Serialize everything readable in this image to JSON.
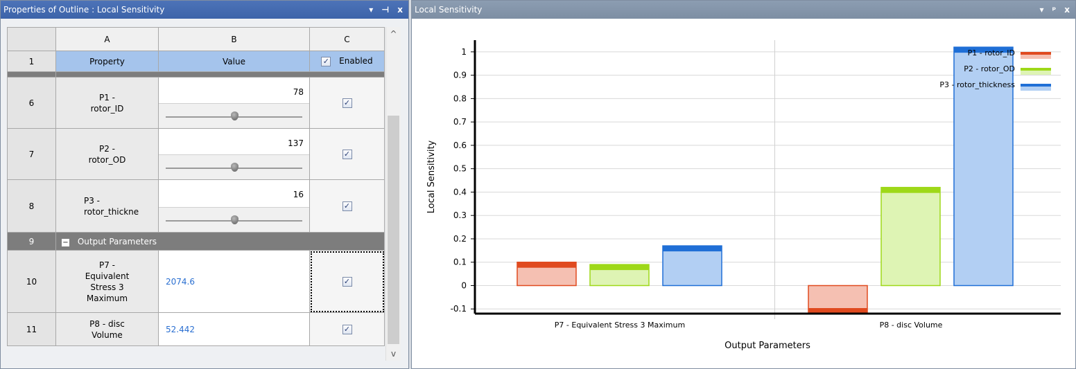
{
  "left_panel": {
    "title": "Properties of Outline : Local Sensitivity",
    "buttons": {
      "dropdown": "▾",
      "pin": "⊣",
      "close": "x"
    },
    "column_letters": [
      "A",
      "B",
      "C"
    ],
    "header_row": {
      "num": "1",
      "property": "Property",
      "value": "Value",
      "enabled": "Enabled"
    },
    "input_rows": [
      {
        "num": "6",
        "property_line1": "P1 -",
        "property_line2": "rotor_ID",
        "value": "78",
        "slider": 0.5,
        "enabled": "✓"
      },
      {
        "num": "7",
        "property_line1": "P2 -",
        "property_line2": "rotor_OD",
        "value": "137",
        "slider": 0.5,
        "enabled": "✓"
      },
      {
        "num": "8",
        "property_line1": "P3 -",
        "property_line2": "rotor_thickne",
        "value": "16",
        "slider": 0.5,
        "enabled": "✓"
      }
    ],
    "group_row": {
      "num": "9",
      "toggle": "−",
      "label": "Output Parameters"
    },
    "output_rows": [
      {
        "num": "10",
        "property_lines": [
          "P7 -",
          "Equivalent",
          "Stress 3",
          "Maximum"
        ],
        "value": "2074.6",
        "enabled": "✓"
      },
      {
        "num": "11",
        "property_lines": [
          "P8 - disc",
          "Volume"
        ],
        "value": "52.442",
        "enabled": "✓"
      }
    ],
    "scroll": {
      "up": "^",
      "down": "v"
    }
  },
  "right_panel": {
    "title": "Local Sensitivity",
    "buttons": {
      "dropdown": "▾",
      "pin": "ᵖ",
      "close": "x"
    }
  },
  "chart_data": {
    "type": "bar",
    "title": "",
    "xlabel": "Output Parameters",
    "ylabel": "Local Sensitivity",
    "ylim": [
      -0.12,
      1.05
    ],
    "yticks": [
      "1",
      "0.9",
      "0.8",
      "0.7",
      "0.6",
      "0.5",
      "0.4",
      "0.3",
      "0.2",
      "0.1",
      "0",
      "-0.1"
    ],
    "ytick_values": [
      1,
      0.9,
      0.8,
      0.7,
      0.6,
      0.5,
      0.4,
      0.3,
      0.2,
      0.1,
      0,
      -0.1
    ],
    "categories": [
      "P7 - Equivalent Stress 3 Maximum",
      "P8 - disc Volume"
    ],
    "series": [
      {
        "name": "P1 - rotor_ID",
        "values": [
          0.1,
          -0.12
        ],
        "color": "#e04a1f",
        "fill": "#f5c0b2"
      },
      {
        "name": "P2 - rotor_OD",
        "values": [
          0.09,
          0.42
        ],
        "color": "#9ed818",
        "fill": "#def4b4"
      },
      {
        "name": "P3 - rotor_thickness",
        "values": [
          0.17,
          1.02
        ],
        "color": "#1f6fd6",
        "fill": "#b2cff3"
      }
    ],
    "grid": true,
    "legend": "top-right"
  }
}
